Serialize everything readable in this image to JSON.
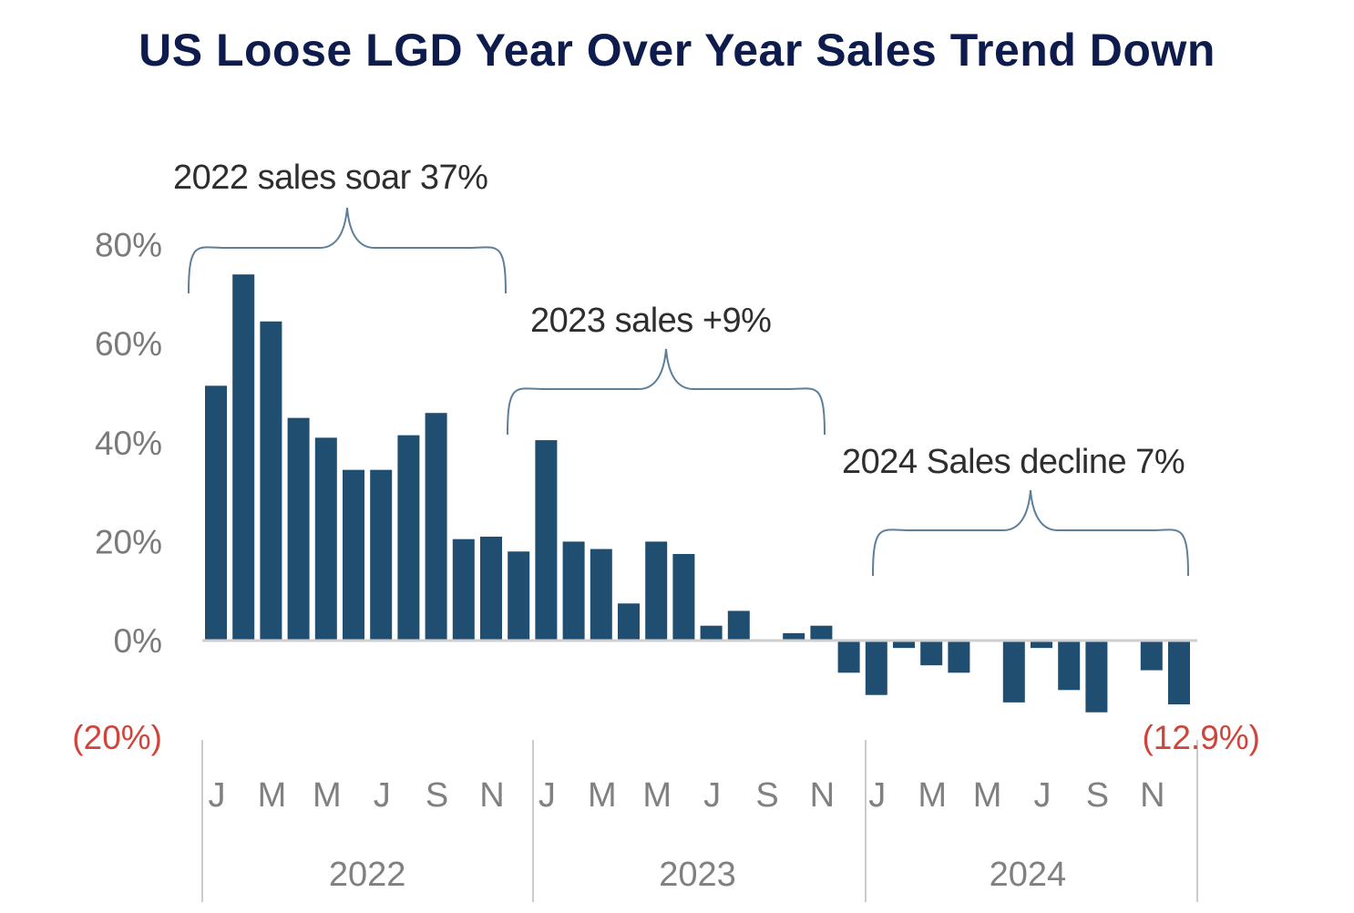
{
  "chart_data": {
    "type": "bar",
    "title": "US Loose LGD Year Over Year Sales Trend Down",
    "xlabel": "",
    "ylabel": "",
    "ylim": [
      -20,
      80
    ],
    "yticks": [
      "80%",
      "60%",
      "40%",
      "20%",
      "0%",
      "(20%)"
    ],
    "month_tick_labels": [
      "J",
      "M",
      "M",
      "J",
      "S",
      "N"
    ],
    "years": [
      "2022",
      "2023",
      "2024"
    ],
    "grid": false,
    "bar_color": "#1f4e70",
    "negative_label_color": "#d0443b",
    "categories": [
      "Jan 2022",
      "Feb 2022",
      "Mar 2022",
      "Apr 2022",
      "May 2022",
      "Jun 2022",
      "Jul 2022",
      "Aug 2022",
      "Sep 2022",
      "Oct 2022",
      "Nov 2022",
      "Dec 2022",
      "Jan 2023",
      "Feb 2023",
      "Mar 2023",
      "Apr 2023",
      "May 2023",
      "Jun 2023",
      "Jul 2023",
      "Aug 2023",
      "Sep 2023",
      "Oct 2023",
      "Nov 2023",
      "Dec 2023",
      "Jan 2024",
      "Feb 2024",
      "Mar 2024",
      "Apr 2024",
      "May 2024",
      "Jun 2024",
      "Jul 2024",
      "Aug 2024",
      "Sep 2024",
      "Oct 2024",
      "Nov 2024",
      "Dec 2024"
    ],
    "values": [
      51.5,
      74,
      64.5,
      45,
      41,
      34.5,
      34.5,
      41.5,
      46,
      20.5,
      21,
      18,
      40.5,
      20,
      18.5,
      7.5,
      20,
      17.5,
      3,
      6,
      0,
      1.5,
      3,
      -6.5,
      -11,
      -1.5,
      -5,
      -6.5,
      0,
      -12.5,
      -1.5,
      -10,
      -14.5,
      0,
      -6,
      -12.9
    ],
    "annotations": [
      {
        "text": "2022 sales soar 37%",
        "from": 0,
        "to": 11
      },
      {
        "text": "2023 sales +9%",
        "from": 12,
        "to": 23
      },
      {
        "text": "2024 Sales decline 7%",
        "from": 24,
        "to": 35
      }
    ],
    "end_label": "(12.9%)"
  }
}
